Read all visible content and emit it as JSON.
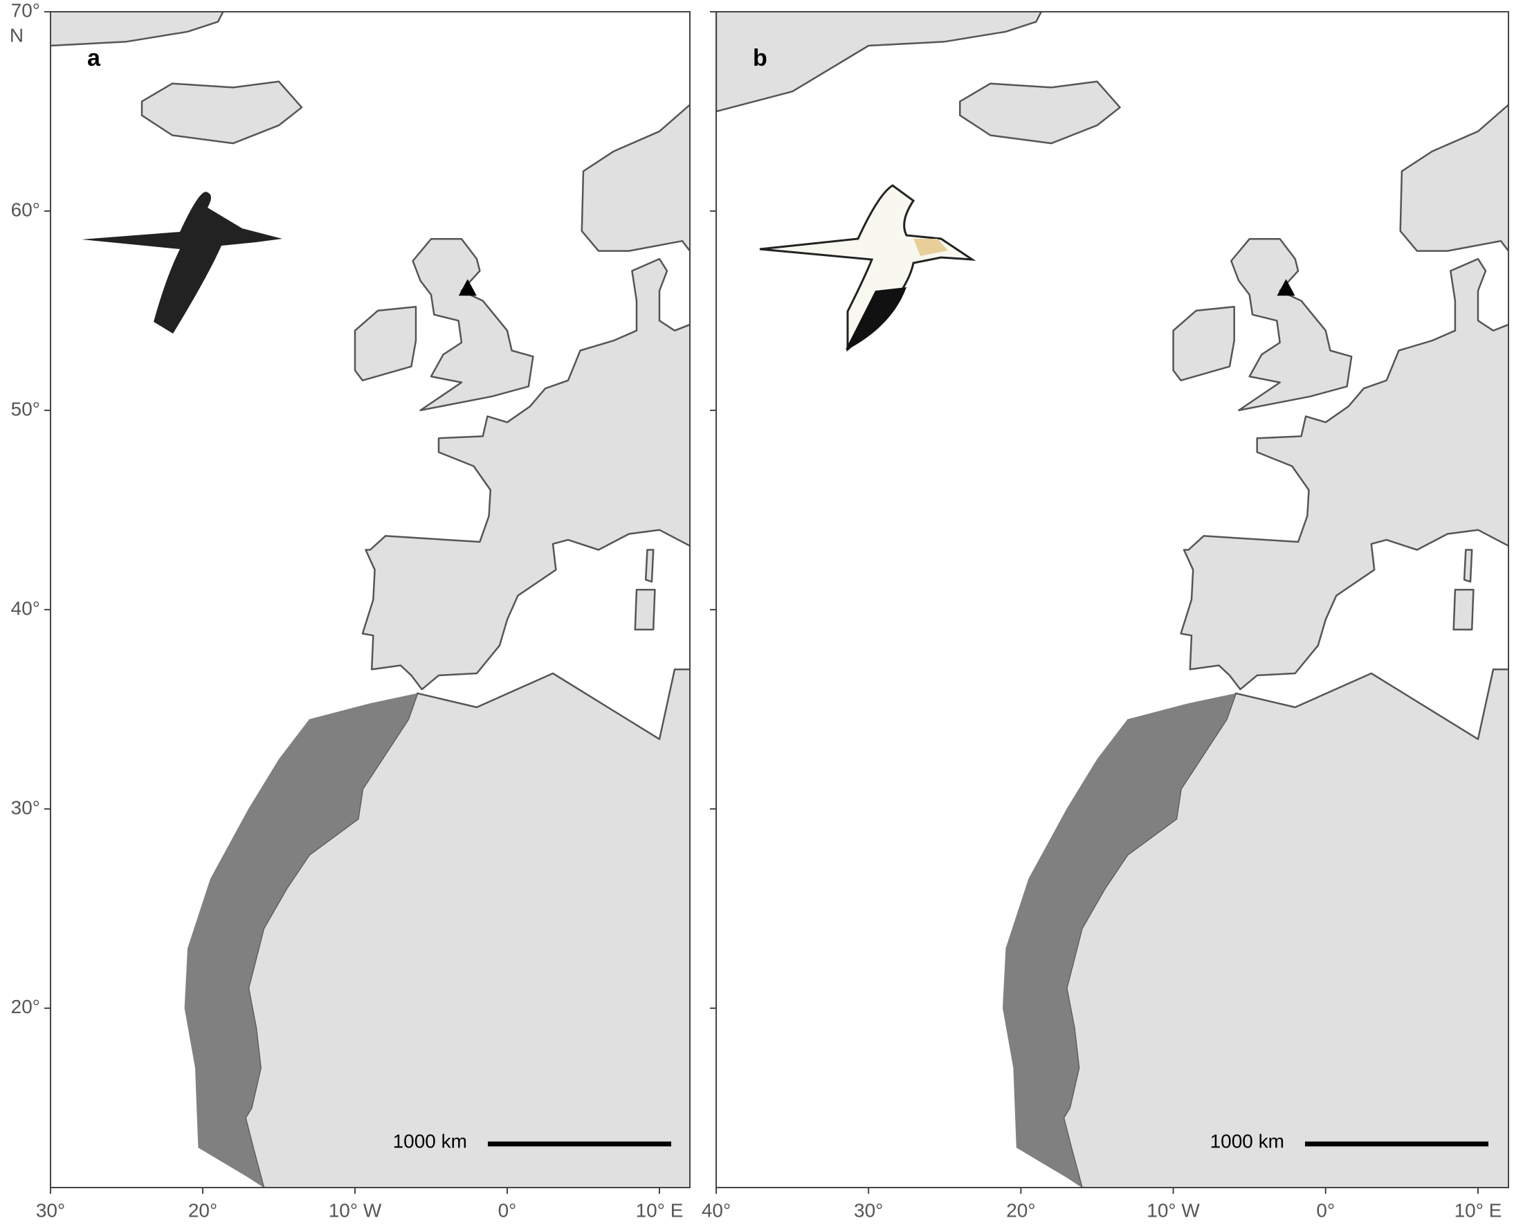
{
  "panels": [
    {
      "label": "a",
      "scale_bar": "1000 km",
      "hemisphere": "N",
      "xlim": [
        -30,
        12
      ],
      "ylim": [
        11,
        70
      ],
      "xticks": [
        {
          "value": -30,
          "label": "30°"
        },
        {
          "value": -20,
          "label": "20°"
        },
        {
          "value": -10,
          "label": "10° W"
        },
        {
          "value": 0,
          "label": "0°"
        },
        {
          "value": 10,
          "label": "10° E"
        }
      ],
      "yticks": [
        {
          "value": 70,
          "label": "70°"
        },
        {
          "value": 60,
          "label": "60°"
        },
        {
          "value": 50,
          "label": "50°"
        },
        {
          "value": 40,
          "label": "40°"
        },
        {
          "value": 30,
          "label": "30°"
        },
        {
          "value": 20,
          "label": "20°"
        }
      ]
    },
    {
      "label": "b",
      "scale_bar": "1000 km",
      "xlim": [
        -40,
        12
      ],
      "ylim": [
        11,
        70
      ],
      "xticks": [
        {
          "value": -40,
          "label": "40°"
        },
        {
          "value": -30,
          "label": "30°"
        },
        {
          "value": -20,
          "label": "20°"
        },
        {
          "value": -10,
          "label": "10° W"
        },
        {
          "value": 0,
          "label": "0°"
        },
        {
          "value": 10,
          "label": "10° E"
        }
      ]
    }
  ]
}
